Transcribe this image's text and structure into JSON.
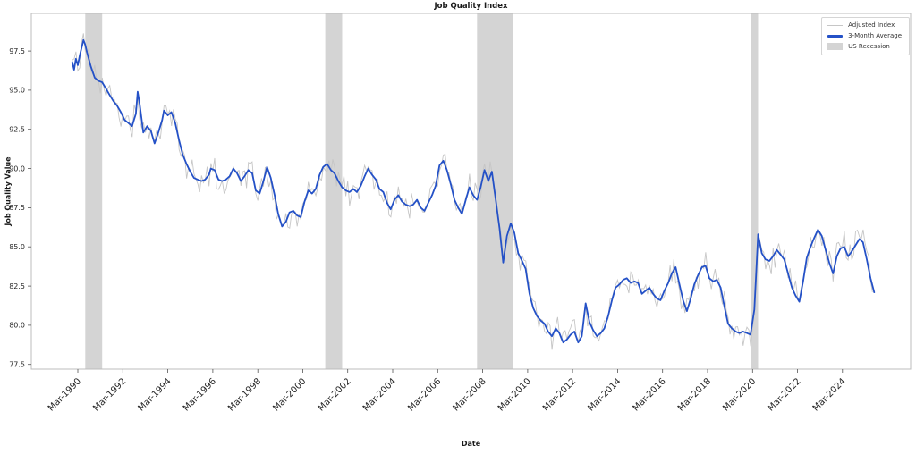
{
  "chart_data": {
    "type": "line",
    "title": "Job Quality Index",
    "xlabel": "Date",
    "ylabel": "Job Quality Value",
    "grid": false,
    "legend_position": "upper right",
    "xlim": [
      1988.1,
      2027.2
    ],
    "ylim": [
      77.2,
      99.9
    ],
    "y_ticks": [
      77.5,
      80.0,
      82.5,
      85.0,
      87.5,
      90.0,
      92.5,
      95.0,
      97.5
    ],
    "y_tick_labels": [
      "77.5",
      "80.0",
      "82.5",
      "85.0",
      "87.5",
      "90.0",
      "92.5",
      "95.0",
      "97.5"
    ],
    "x_ticks": [
      {
        "label": "Mar-1990",
        "x": 1990.17
      },
      {
        "label": "Mar-1992",
        "x": 1992.17
      },
      {
        "label": "Mar-1994",
        "x": 1994.17
      },
      {
        "label": "Mar-1996",
        "x": 1996.17
      },
      {
        "label": "Mar-1998",
        "x": 1998.17
      },
      {
        "label": "Mar-2000",
        "x": 2000.17
      },
      {
        "label": "Mar-2002",
        "x": 2002.17
      },
      {
        "label": "Mar-2004",
        "x": 2004.17
      },
      {
        "label": "Mar-2006",
        "x": 2006.17
      },
      {
        "label": "Mar-2008",
        "x": 2008.17
      },
      {
        "label": "Mar-2010",
        "x": 2010.17
      },
      {
        "label": "Mar-2012",
        "x": 2012.17
      },
      {
        "label": "Mar-2014",
        "x": 2014.17
      },
      {
        "label": "Mar-2016",
        "x": 2016.17
      },
      {
        "label": "Mar-2018",
        "x": 2018.17
      },
      {
        "label": "Mar-2020",
        "x": 2020.17
      },
      {
        "label": "Mar-2022",
        "x": 2022.17
      },
      {
        "label": "Mar-2024",
        "x": 2024.17
      }
    ],
    "recession_label": "US Recession",
    "recessions": [
      [
        1990.5,
        1991.25
      ],
      [
        2001.17,
        2001.92
      ],
      [
        2007.92,
        2009.5
      ],
      [
        2020.08,
        2020.42
      ]
    ],
    "colors": {
      "average_line": "#2451c7",
      "adjusted_line": "#c6c6c6",
      "recession": "#d4d4d4"
    },
    "series": [
      {
        "name": "Adjusted Index",
        "color": "#c6c6c6",
        "width": 0.9,
        "derived": "3-Month Average plus monthly noise (values not individually readable in source)",
        "noise_amplitude": 0.55
      },
      {
        "name": "3-Month Average",
        "color": "#2451c7",
        "width": 1.8,
        "points": [
          [
            1989.92,
            96.8
          ],
          [
            1990.0,
            96.3
          ],
          [
            1990.08,
            97.0
          ],
          [
            1990.17,
            96.6
          ],
          [
            1990.25,
            97.2
          ],
          [
            1990.42,
            98.2
          ],
          [
            1990.5,
            97.9
          ],
          [
            1990.58,
            97.4
          ],
          [
            1990.75,
            96.5
          ],
          [
            1990.92,
            95.8
          ],
          [
            1991.08,
            95.6
          ],
          [
            1991.25,
            95.5
          ],
          [
            1991.42,
            95.1
          ],
          [
            1991.58,
            94.7
          ],
          [
            1991.75,
            94.3
          ],
          [
            1991.92,
            94.0
          ],
          [
            1992.08,
            93.6
          ],
          [
            1992.25,
            93.1
          ],
          [
            1992.42,
            92.9
          ],
          [
            1992.58,
            92.7
          ],
          [
            1992.75,
            93.5
          ],
          [
            1992.83,
            94.9
          ],
          [
            1992.92,
            94.1
          ],
          [
            1993.08,
            92.3
          ],
          [
            1993.25,
            92.7
          ],
          [
            1993.42,
            92.4
          ],
          [
            1993.58,
            91.6
          ],
          [
            1993.75,
            92.3
          ],
          [
            1993.92,
            93.1
          ],
          [
            1994.0,
            93.7
          ],
          [
            1994.17,
            93.4
          ],
          [
            1994.33,
            93.6
          ],
          [
            1994.5,
            92.9
          ],
          [
            1994.67,
            91.8
          ],
          [
            1994.83,
            90.9
          ],
          [
            1995.0,
            90.3
          ],
          [
            1995.17,
            89.8
          ],
          [
            1995.33,
            89.4
          ],
          [
            1995.5,
            89.3
          ],
          [
            1995.67,
            89.2
          ],
          [
            1995.83,
            89.3
          ],
          [
            1996.0,
            89.6
          ],
          [
            1996.08,
            90.0
          ],
          [
            1996.25,
            89.9
          ],
          [
            1996.42,
            89.3
          ],
          [
            1996.58,
            89.2
          ],
          [
            1996.75,
            89.3
          ],
          [
            1996.92,
            89.5
          ],
          [
            1997.08,
            90.0
          ],
          [
            1997.25,
            89.7
          ],
          [
            1997.42,
            89.2
          ],
          [
            1997.58,
            89.5
          ],
          [
            1997.75,
            89.9
          ],
          [
            1997.92,
            89.7
          ],
          [
            1998.08,
            88.6
          ],
          [
            1998.25,
            88.4
          ],
          [
            1998.42,
            89.2
          ],
          [
            1998.58,
            90.1
          ],
          [
            1998.75,
            89.4
          ],
          [
            1998.92,
            88.3
          ],
          [
            1999.08,
            87.1
          ],
          [
            1999.25,
            86.3
          ],
          [
            1999.42,
            86.6
          ],
          [
            1999.58,
            87.2
          ],
          [
            1999.75,
            87.3
          ],
          [
            1999.92,
            87.0
          ],
          [
            2000.08,
            86.9
          ],
          [
            2000.25,
            87.9
          ],
          [
            2000.42,
            88.6
          ],
          [
            2000.58,
            88.4
          ],
          [
            2000.75,
            88.7
          ],
          [
            2000.92,
            89.6
          ],
          [
            2001.08,
            90.1
          ],
          [
            2001.25,
            90.3
          ],
          [
            2001.42,
            89.9
          ],
          [
            2001.58,
            89.7
          ],
          [
            2001.75,
            89.2
          ],
          [
            2001.92,
            88.8
          ],
          [
            2002.08,
            88.6
          ],
          [
            2002.25,
            88.5
          ],
          [
            2002.42,
            88.7
          ],
          [
            2002.58,
            88.5
          ],
          [
            2002.75,
            88.9
          ],
          [
            2002.92,
            89.5
          ],
          [
            2003.08,
            90.0
          ],
          [
            2003.25,
            89.6
          ],
          [
            2003.42,
            89.3
          ],
          [
            2003.58,
            88.7
          ],
          [
            2003.75,
            88.5
          ],
          [
            2003.92,
            87.8
          ],
          [
            2004.08,
            87.4
          ],
          [
            2004.25,
            88.0
          ],
          [
            2004.42,
            88.3
          ],
          [
            2004.58,
            87.9
          ],
          [
            2004.75,
            87.7
          ],
          [
            2004.92,
            87.6
          ],
          [
            2005.08,
            87.7
          ],
          [
            2005.25,
            88.0
          ],
          [
            2005.42,
            87.5
          ],
          [
            2005.58,
            87.3
          ],
          [
            2005.75,
            87.8
          ],
          [
            2005.92,
            88.3
          ],
          [
            2006.08,
            88.9
          ],
          [
            2006.25,
            90.2
          ],
          [
            2006.42,
            90.5
          ],
          [
            2006.58,
            89.9
          ],
          [
            2006.75,
            89.0
          ],
          [
            2006.92,
            88.0
          ],
          [
            2007.08,
            87.5
          ],
          [
            2007.25,
            87.1
          ],
          [
            2007.42,
            88.0
          ],
          [
            2007.58,
            88.8
          ],
          [
            2007.75,
            88.3
          ],
          [
            2007.92,
            88.0
          ],
          [
            2008.08,
            88.8
          ],
          [
            2008.25,
            89.9
          ],
          [
            2008.42,
            89.2
          ],
          [
            2008.58,
            89.8
          ],
          [
            2008.75,
            88.0
          ],
          [
            2008.92,
            86.2
          ],
          [
            2009.08,
            84.0
          ],
          [
            2009.25,
            85.7
          ],
          [
            2009.42,
            86.5
          ],
          [
            2009.58,
            85.9
          ],
          [
            2009.75,
            84.6
          ],
          [
            2009.92,
            84.1
          ],
          [
            2010.08,
            83.6
          ],
          [
            2010.25,
            82.0
          ],
          [
            2010.42,
            81.1
          ],
          [
            2010.58,
            80.6
          ],
          [
            2010.75,
            80.3
          ],
          [
            2010.92,
            80.1
          ],
          [
            2011.08,
            79.6
          ],
          [
            2011.25,
            79.3
          ],
          [
            2011.42,
            79.8
          ],
          [
            2011.58,
            79.5
          ],
          [
            2011.75,
            78.9
          ],
          [
            2011.92,
            79.1
          ],
          [
            2012.08,
            79.4
          ],
          [
            2012.25,
            79.6
          ],
          [
            2012.42,
            78.9
          ],
          [
            2012.58,
            79.3
          ],
          [
            2012.75,
            81.4
          ],
          [
            2012.92,
            80.2
          ],
          [
            2013.08,
            79.7
          ],
          [
            2013.25,
            79.3
          ],
          [
            2013.42,
            79.5
          ],
          [
            2013.58,
            79.8
          ],
          [
            2013.75,
            80.6
          ],
          [
            2013.92,
            81.6
          ],
          [
            2014.08,
            82.4
          ],
          [
            2014.25,
            82.6
          ],
          [
            2014.42,
            82.9
          ],
          [
            2014.58,
            83.0
          ],
          [
            2014.75,
            82.7
          ],
          [
            2014.92,
            82.8
          ],
          [
            2015.08,
            82.7
          ],
          [
            2015.25,
            82.0
          ],
          [
            2015.42,
            82.2
          ],
          [
            2015.58,
            82.4
          ],
          [
            2015.75,
            82.0
          ],
          [
            2015.92,
            81.7
          ],
          [
            2016.08,
            81.6
          ],
          [
            2016.25,
            82.2
          ],
          [
            2016.42,
            82.7
          ],
          [
            2016.58,
            83.3
          ],
          [
            2016.75,
            83.7
          ],
          [
            2016.92,
            82.6
          ],
          [
            2017.08,
            81.6
          ],
          [
            2017.25,
            80.9
          ],
          [
            2017.42,
            81.7
          ],
          [
            2017.58,
            82.6
          ],
          [
            2017.75,
            83.2
          ],
          [
            2017.92,
            83.7
          ],
          [
            2018.08,
            83.8
          ],
          [
            2018.25,
            83.0
          ],
          [
            2018.42,
            82.8
          ],
          [
            2018.58,
            82.9
          ],
          [
            2018.75,
            82.4
          ],
          [
            2018.92,
            81.2
          ],
          [
            2019.08,
            80.1
          ],
          [
            2019.25,
            79.8
          ],
          [
            2019.42,
            79.6
          ],
          [
            2019.58,
            79.5
          ],
          [
            2019.75,
            79.6
          ],
          [
            2019.92,
            79.5
          ],
          [
            2020.08,
            79.4
          ],
          [
            2020.25,
            81.0
          ],
          [
            2020.42,
            85.8
          ],
          [
            2020.58,
            84.6
          ],
          [
            2020.75,
            84.2
          ],
          [
            2020.92,
            84.1
          ],
          [
            2021.08,
            84.4
          ],
          [
            2021.25,
            84.8
          ],
          [
            2021.42,
            84.5
          ],
          [
            2021.58,
            84.2
          ],
          [
            2021.75,
            83.3
          ],
          [
            2021.92,
            82.4
          ],
          [
            2022.08,
            81.9
          ],
          [
            2022.25,
            81.5
          ],
          [
            2022.42,
            82.8
          ],
          [
            2022.58,
            84.3
          ],
          [
            2022.75,
            85.0
          ],
          [
            2022.92,
            85.6
          ],
          [
            2023.08,
            86.1
          ],
          [
            2023.25,
            85.7
          ],
          [
            2023.42,
            84.8
          ],
          [
            2023.58,
            84.0
          ],
          [
            2023.75,
            83.3
          ],
          [
            2023.92,
            84.4
          ],
          [
            2024.08,
            84.9
          ],
          [
            2024.25,
            85.0
          ],
          [
            2024.42,
            84.4
          ],
          [
            2024.58,
            84.7
          ],
          [
            2024.75,
            85.1
          ],
          [
            2024.92,
            85.5
          ],
          [
            2025.08,
            85.3
          ],
          [
            2025.25,
            84.2
          ],
          [
            2025.42,
            83.0
          ],
          [
            2025.58,
            82.1
          ]
        ]
      }
    ],
    "legend": {
      "entries": [
        {
          "label": "Adjusted Index",
          "swatch": "thin-gray-line"
        },
        {
          "label": "3-Month Average",
          "swatch": "thick-blue-line"
        },
        {
          "label": "US Recession",
          "swatch": "gray-patch"
        }
      ]
    }
  }
}
